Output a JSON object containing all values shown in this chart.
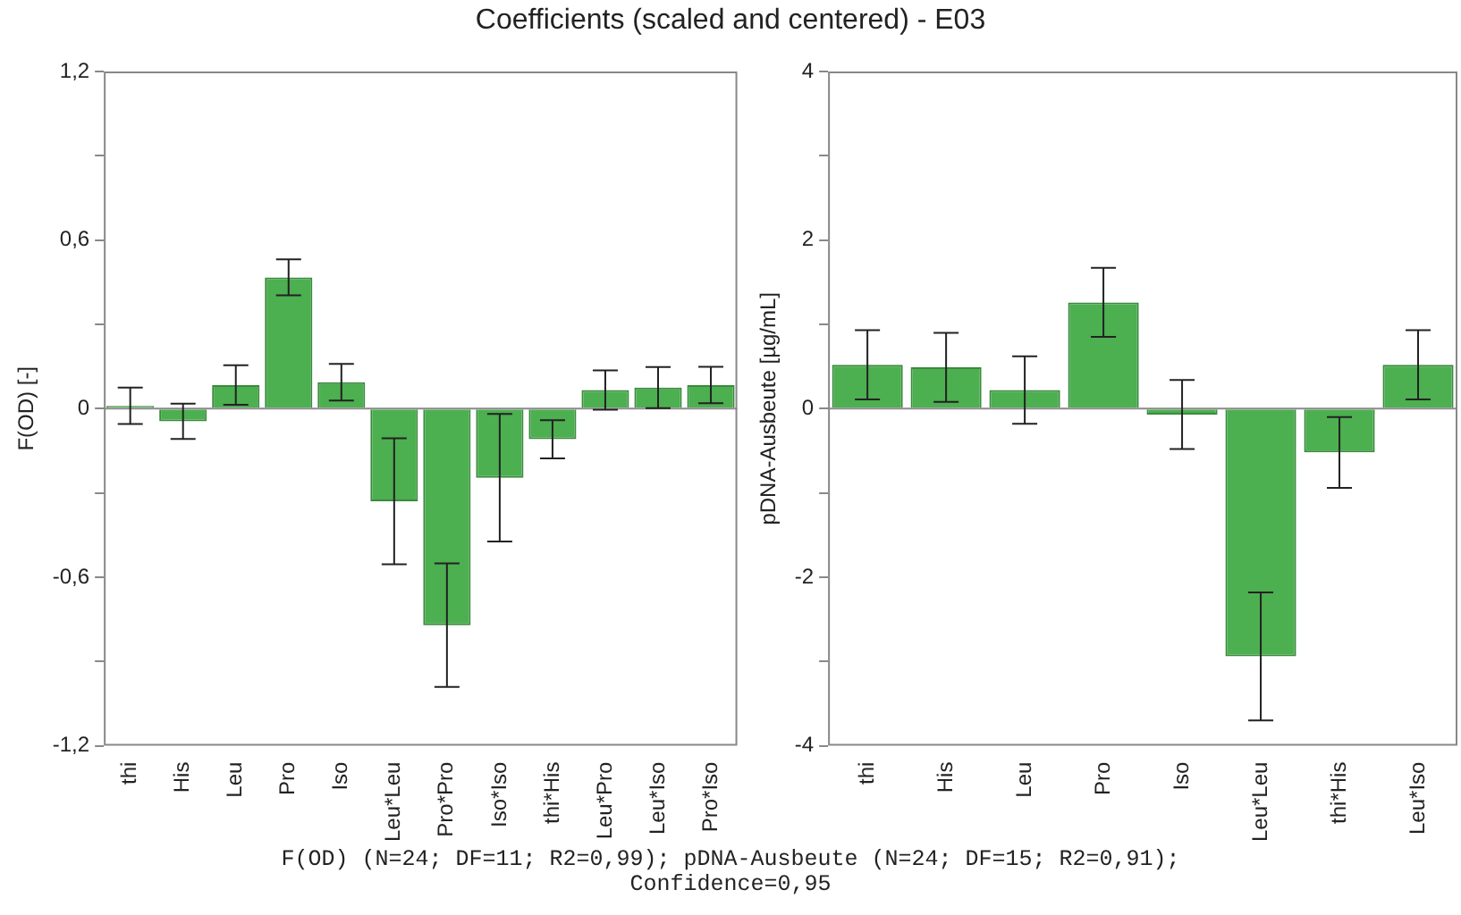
{
  "chart_data": [
    {
      "type": "bar",
      "title": "Coefficients (scaled and centered) - E03",
      "ylabel": "F(OD) [-]",
      "categories": [
        "thi",
        "His",
        "Leu",
        "Pro",
        "Iso",
        "Leu*Leu",
        "Pro*Pro",
        "Iso*Iso",
        "thi*His",
        "Leu*Pro",
        "Leu*Iso",
        "Pro*Iso"
      ],
      "values": [
        0.01,
        -0.045,
        0.084,
        0.467,
        0.094,
        -0.33,
        -0.771,
        -0.246,
        -0.109,
        0.066,
        0.075,
        0.084
      ],
      "errors": [
        0.065,
        0.063,
        0.07,
        0.064,
        0.065,
        0.224,
        0.22,
        0.227,
        0.068,
        0.07,
        0.073,
        0.065
      ],
      "color": "#4caf50",
      "ylim": [
        -1.2,
        1.2
      ],
      "yticks": [
        {
          "value": -1.2,
          "label": "-1,2"
        },
        {
          "value": -0.9,
          "label": null
        },
        {
          "value": -0.6,
          "label": "-0,6"
        },
        {
          "value": -0.3,
          "label": null
        },
        0,
        {
          "value": 0.3,
          "label": null
        },
        {
          "value": 0.6,
          "label": "0,6"
        },
        {
          "value": 0.9,
          "label": null
        },
        {
          "value": 1.2,
          "label": "1,2"
        }
      ],
      "ref_lines": [
        {
          "axis": "y",
          "value": 0,
          "color": "#8a8a8a"
        }
      ],
      "grid": false,
      "legend": false,
      "annotations": [
        "F(OD) (N=24; DF=11; R2=0,99); pDNA-Ausbeute (N=24; DF=15; R2=0,91);",
        "Confidence=0,95"
      ]
    },
    {
      "type": "bar",
      "ylabel": "pDNA-Ausbeute [µg/mL]",
      "categories": [
        "thi",
        "His",
        "Leu",
        "Pro",
        "Iso",
        "Leu*Leu",
        "thi*His",
        "Leu*Iso"
      ],
      "values": [
        0.52,
        0.49,
        0.22,
        1.26,
        -0.07,
        -2.94,
        -0.52,
        0.52
      ],
      "errors": [
        0.41,
        0.41,
        0.4,
        0.41,
        0.41,
        0.76,
        0.42,
        0.41
      ],
      "color": "#4caf50",
      "ylim": [
        -4,
        4
      ],
      "yticks": [
        -4,
        {
          "value": -3,
          "label": null
        },
        -2,
        {
          "value": -1,
          "label": null
        },
        0,
        {
          "value": 1,
          "label": null
        },
        2,
        {
          "value": 3,
          "label": null
        },
        4
      ],
      "ref_lines": [
        {
          "axis": "y",
          "value": 0,
          "color": "#8a8a8a"
        }
      ],
      "grid": false,
      "legend": false
    }
  ]
}
